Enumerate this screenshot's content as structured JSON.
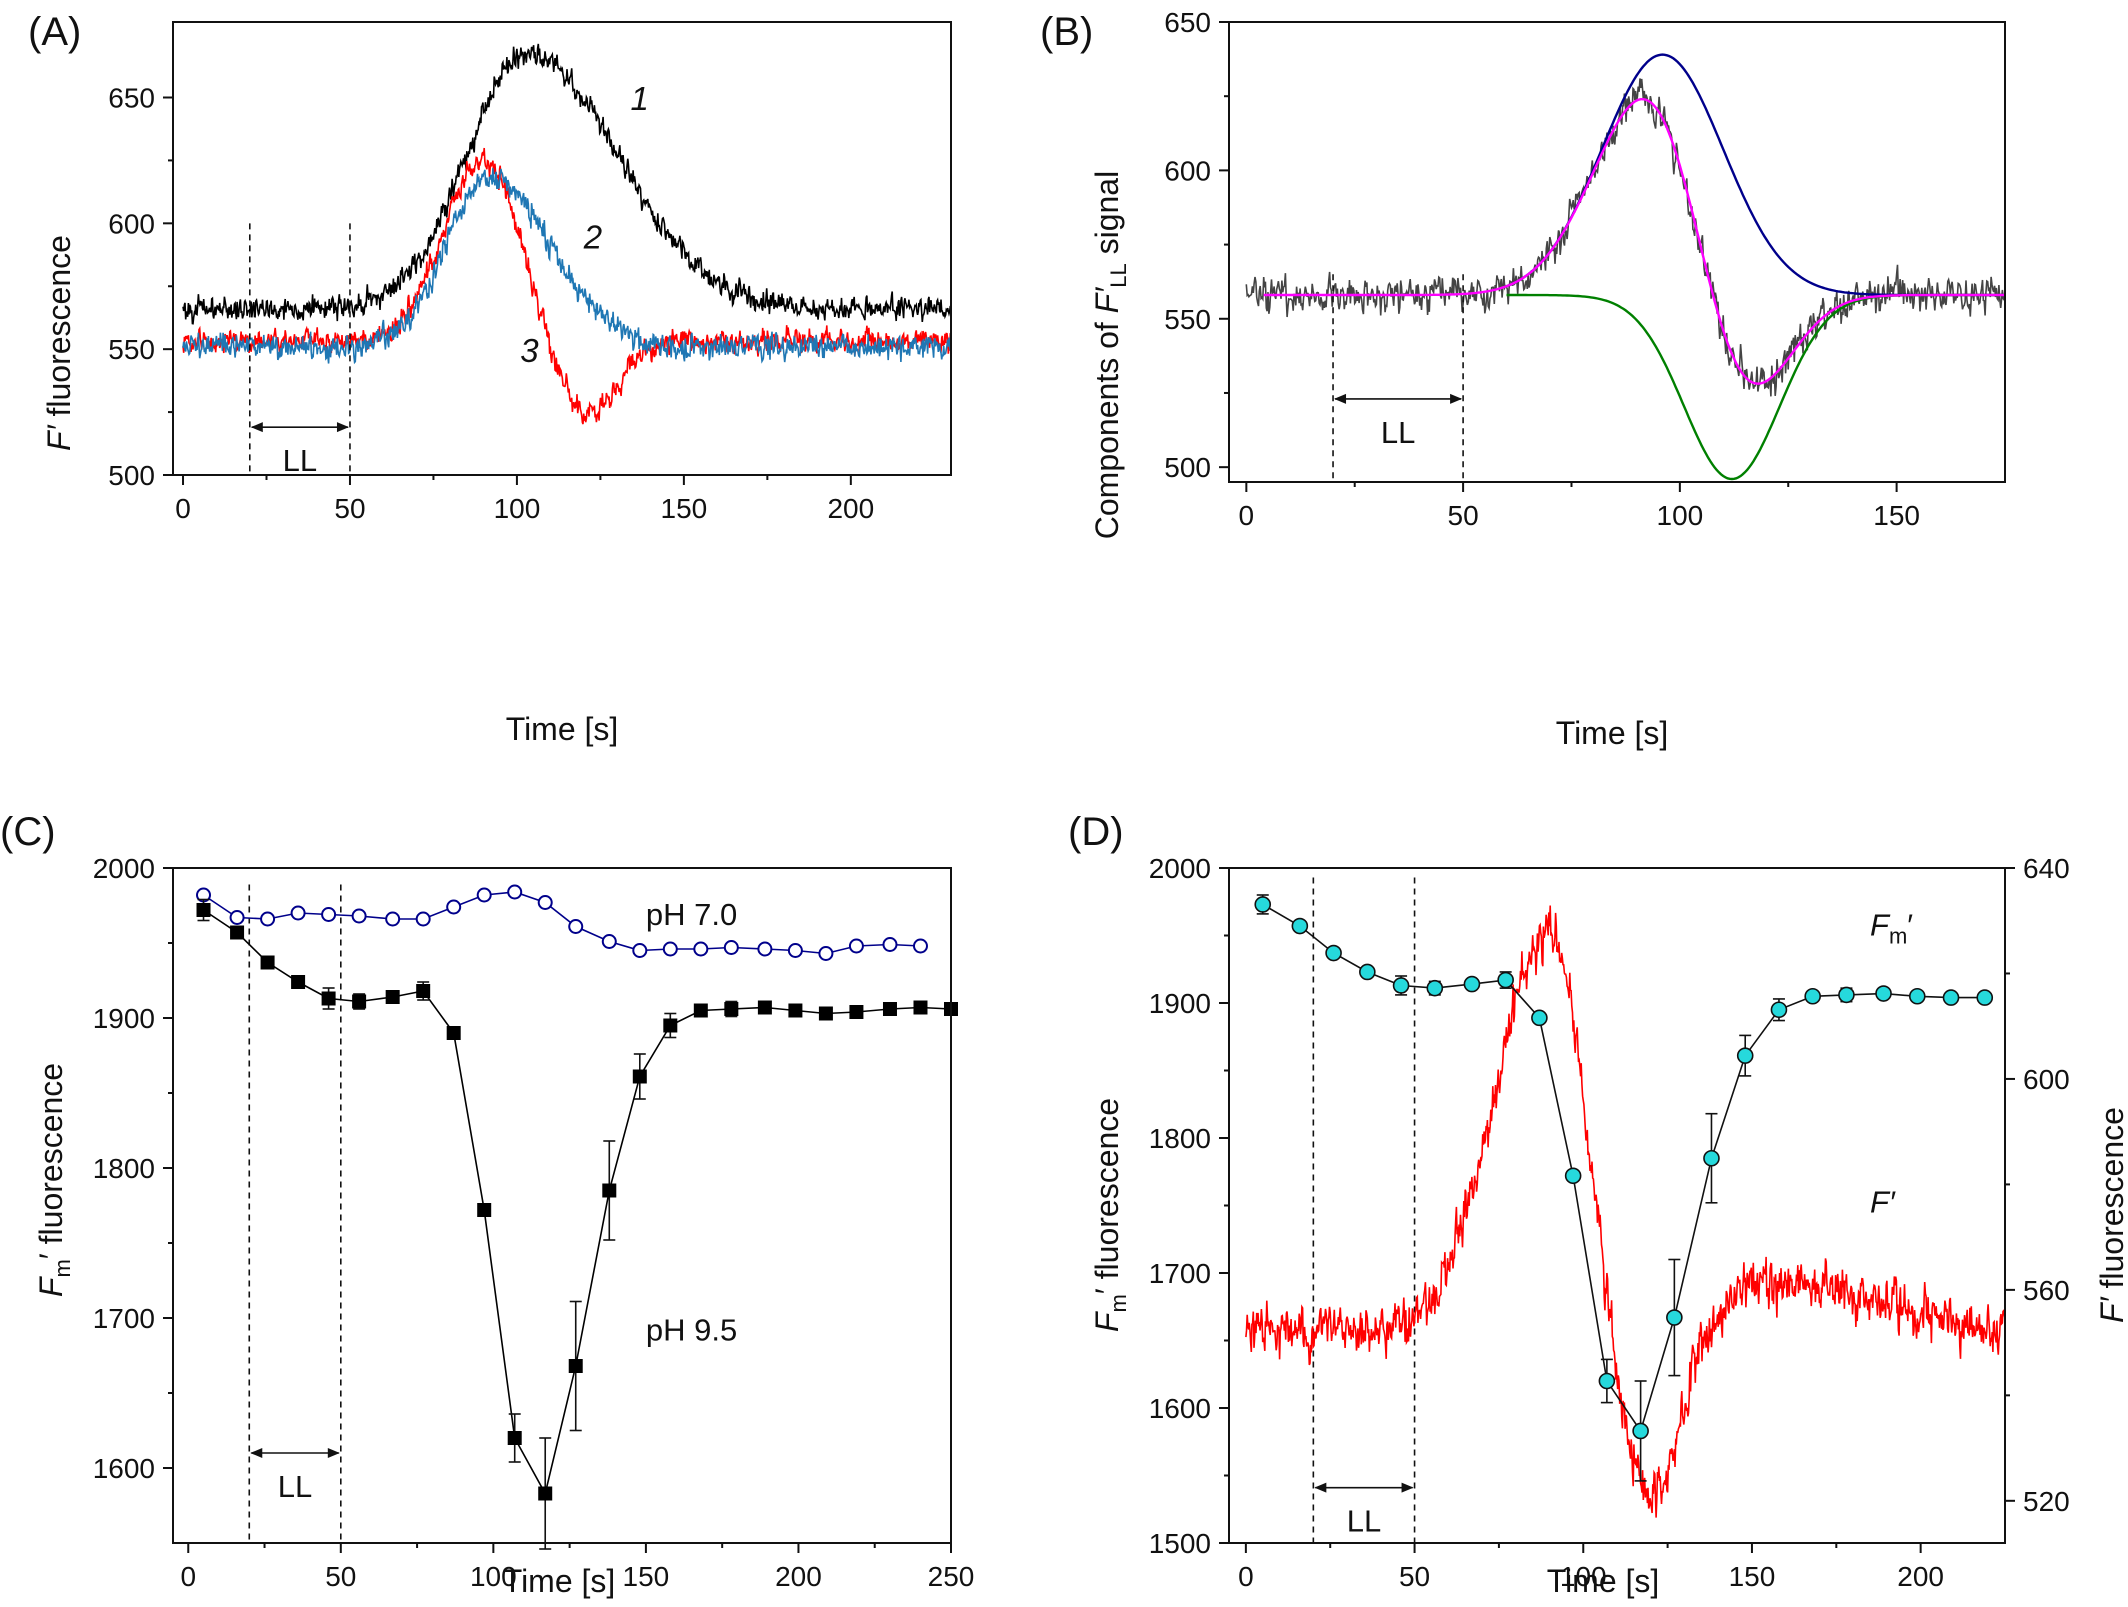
{
  "colors": {
    "axis": "#111111",
    "curve1": "#000000",
    "curve2": "#1f77b4",
    "curve3": "#ff0000",
    "raw_signal": "#444444",
    "fit": "#ff00ff",
    "component_positive": "#00008b",
    "component_negative": "#008000",
    "pH7_marker": "#00008b",
    "pH95_marker": "#000000",
    "fm_marker_fill": "#26d9dc",
    "trace_red": "#ff0000"
  },
  "chart_data": [
    {
      "id": "A",
      "type": "line",
      "panel_label": "(A)",
      "xlabel": "Time [s]",
      "ylabel": "F′ fluorescence",
      "ylabel_italic_part": "F′",
      "ylabel_rest": " fluorescence",
      "xlim": [
        -3,
        230
      ],
      "ylim": [
        500,
        680
      ],
      "xticks": [
        0,
        50,
        100,
        150,
        200
      ],
      "yticks": [
        500,
        550,
        600,
        650
      ],
      "annotation": {
        "text": "LL",
        "x_start": 20,
        "x_end": 50
      },
      "series": [
        {
          "name": "1",
          "color_key": "curve1",
          "baseline": 566,
          "peak_time": 103,
          "peak_height": 102,
          "width_left": 18,
          "width_right": 27,
          "dip_time": 0,
          "dip_height": 0,
          "dip_width": 1,
          "noise": 3.4,
          "x_start": 0,
          "x_end": 230,
          "label_x": 134,
          "label_y": 645
        },
        {
          "name": "2",
          "color_key": "curve2",
          "baseline": 551,
          "peak_time": 92,
          "peak_height": 67,
          "width_left": 13,
          "width_right": 18,
          "dip_time": 0,
          "dip_height": 0,
          "dip_width": 1,
          "noise": 3.6,
          "x_start": 0,
          "x_end": 230,
          "label_x": 120,
          "label_y": 590
        },
        {
          "name": "3",
          "color_key": "curve3",
          "baseline": 553,
          "peak_time": 90,
          "peak_height": 72,
          "width_left": 12,
          "width_right": 11,
          "dip_time": 121,
          "dip_height": 30,
          "dip_width": 9,
          "noise": 3.4,
          "x_start": 0,
          "x_end": 230,
          "label_x": 101,
          "label_y": 545
        }
      ]
    },
    {
      "id": "B",
      "type": "line",
      "panel_label": "(B)",
      "xlabel": "Time [s]",
      "ylabel": "Components of F′LL signal",
      "ylabel_pre": "Components of ",
      "ylabel_italic_part": "F′",
      "ylabel_sub": "LL",
      "ylabel_post": " signal",
      "xlim": [
        -4,
        175
      ],
      "ylim": [
        495,
        650
      ],
      "xticks": [
        0,
        50,
        100,
        150
      ],
      "yticks": [
        500,
        550,
        600,
        650
      ],
      "annotation": {
        "text": "LL",
        "x_start": 20,
        "x_end": 50
      },
      "baseline": 558,
      "components": [
        {
          "name": "positive component",
          "color_key": "component_positive",
          "amplitude": 81,
          "center": 96,
          "sigma": 14
        },
        {
          "name": "negative component",
          "color_key": "component_negative",
          "amplitude": -62,
          "center": 112,
          "sigma": 11
        }
      ],
      "signal": {
        "color_key": "raw_signal",
        "x_start": 0,
        "x_end": 175,
        "noise": 4.4
      },
      "fit": {
        "color_key": "fit",
        "x_start": 4,
        "x_end": 175
      }
    },
    {
      "id": "C",
      "type": "scatter",
      "panel_label": "(C)",
      "xlabel": "Time [s]",
      "ylabel": "Fm′ fluorescence",
      "ylabel_italic_part": "F",
      "ylabel_sub": "m",
      "ylabel_post": "′ fluorescence",
      "xlim": [
        -5,
        250
      ],
      "ylim": [
        1550,
        2000
      ],
      "xticks": [
        0,
        50,
        100,
        150,
        200,
        250
      ],
      "yticks": [
        1600,
        1700,
        1800,
        1900,
        2000
      ],
      "annotation": {
        "text": "LL",
        "x_start": 20,
        "x_end": 50
      },
      "series": [
        {
          "name": "pH 7.0",
          "color_key": "pH7_marker",
          "marker": "open-circle",
          "label_x": 150,
          "label_y": 1962,
          "x": [
            5,
            16,
            26,
            36,
            46,
            56,
            67,
            77,
            87,
            97,
            107,
            117,
            127,
            138,
            148,
            158,
            168,
            178,
            189,
            199,
            209,
            219,
            230,
            240
          ],
          "y": [
            1982,
            1967,
            1966,
            1970,
            1969,
            1968,
            1966,
            1966,
            1974,
            1982,
            1984,
            1977,
            1961,
            1951,
            1945,
            1946,
            1946,
            1947,
            1946,
            1945,
            1943,
            1948,
            1949,
            1948
          ],
          "err": []
        },
        {
          "name": "pH 9.5",
          "color_key": "pH95_marker",
          "marker": "filled-square",
          "label_x": 150,
          "label_y": 1685,
          "x": [
            5,
            16,
            26,
            36,
            46,
            56,
            67,
            77,
            87,
            97,
            107,
            117,
            127,
            138,
            148,
            158,
            168,
            178,
            189,
            199,
            209,
            219,
            230,
            240,
            250
          ],
          "y": [
            1972,
            1957,
            1937,
            1924,
            1913,
            1911,
            1914,
            1918,
            1890,
            1772,
            1620,
            1583,
            1668,
            1785,
            1861,
            1895,
            1905,
            1906,
            1907,
            1905,
            1903,
            1904,
            1906,
            1907,
            1906
          ],
          "err": [
            7,
            3,
            3,
            3,
            7,
            5,
            3,
            6,
            2,
            2,
            16,
            37,
            43,
            33,
            15,
            8,
            3,
            5,
            3,
            2,
            2,
            2,
            2,
            2,
            2
          ]
        }
      ]
    },
    {
      "id": "D",
      "type": "scatter",
      "panel_label": "(D)",
      "xlabel": "Time [s]",
      "ylabel_left": "Fm′ fluorescence",
      "ylabel_left_italic": "F",
      "ylabel_left_sub": "m",
      "ylabel_left_post": "′ fluorescence",
      "ylabel_right": "F′ fluorescence",
      "ylabel_right_italic": "F′",
      "ylabel_right_post": " fluorescence",
      "xlim": [
        -5,
        225
      ],
      "ylim": [
        1500,
        2000
      ],
      "y2lim": [
        512,
        640
      ],
      "xticks": [
        0,
        50,
        100,
        150,
        200
      ],
      "yticks": [
        1500,
        1600,
        1700,
        1800,
        1900,
        2000
      ],
      "y2ticks": [
        520,
        560,
        600,
        640
      ],
      "annotation": {
        "text": "LL",
        "x_start": 20,
        "x_end": 50
      },
      "series": [
        {
          "name": "Fm′",
          "label_italic": "F",
          "label_sub": "m",
          "label_post": "′",
          "color_key": "fm_marker_fill",
          "marker": "filled-circle",
          "label_x": 185,
          "label_y": 1950,
          "x": [
            5,
            16,
            26,
            36,
            46,
            56,
            67,
            77,
            87,
            97,
            107,
            117,
            127,
            138,
            148,
            158,
            168,
            178,
            189,
            199,
            209,
            219
          ],
          "y": [
            1973,
            1957,
            1937,
            1923,
            1913,
            1911,
            1914,
            1917,
            1889,
            1772,
            1620,
            1583,
            1667,
            1785,
            1861,
            1895,
            1905,
            1906,
            1907,
            1905,
            1904,
            1904
          ],
          "err": [
            7,
            3,
            3,
            3,
            7,
            5,
            3,
            6,
            2,
            2,
            16,
            37,
            43,
            33,
            15,
            8,
            3,
            5,
            3,
            2,
            2,
            2
          ]
        },
        {
          "name": "F′",
          "label_italic": "F′",
          "color_key": "trace_red",
          "marker": "line",
          "axis": "right",
          "label_x": 185,
          "label_y": 1745,
          "baseline": 552,
          "peak_time": 90,
          "peak_height": 76,
          "width_left": 16,
          "width_right": 10,
          "dip_time": 120,
          "dip_height": 35,
          "dip_width": 9,
          "rebound_time": 160,
          "rebound_height": 9,
          "rebound_width": 28,
          "noise": 3.3,
          "x_start": 0,
          "x_end": 225
        }
      ]
    }
  ]
}
